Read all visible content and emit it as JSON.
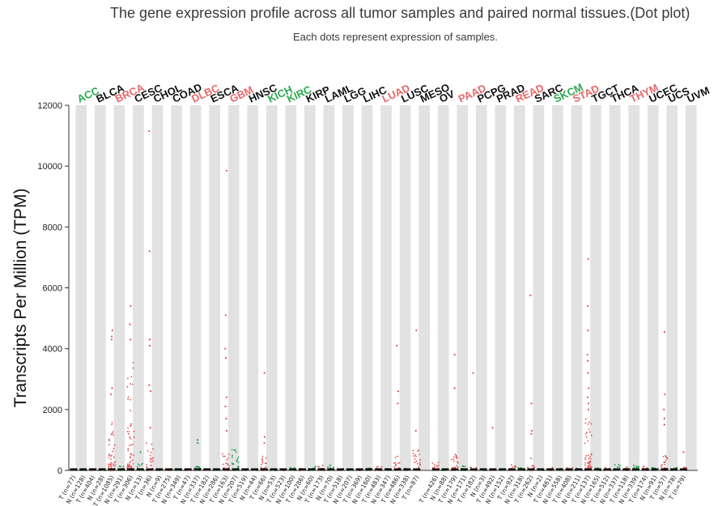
{
  "title": "The gene expression profile across all tumor samples and paired normal tissues.(Dot plot)",
  "subtitle": "Each dots represent expression of samples.",
  "colors": {
    "tumor": "#e3504f",
    "normal": "#1a9c3e",
    "up_label": "#e66868",
    "down_label": "#2aa84f",
    "plain_label": "#111111",
    "band": "#e2e2e2",
    "median": "#000000"
  },
  "chart_data": {
    "type": "scatter",
    "ylabel": "Transcripts Per Million (TPM)",
    "ylim": [
      0,
      12000
    ],
    "yticks": [
      0,
      2000,
      4000,
      6000,
      8000,
      10000,
      12000
    ],
    "cancers": [
      {
        "name": "ACC",
        "status": "down",
        "groups": [
          {
            "label": "T (n=77)",
            "type": "T",
            "max": 30,
            "outliers": []
          },
          {
            "label": "N (n=128)",
            "type": "N",
            "max": 40,
            "outliers": []
          }
        ]
      },
      {
        "name": "BLCA",
        "status": "none",
        "groups": [
          {
            "label": "T (n=404)",
            "type": "T",
            "max": 60,
            "outliers": []
          },
          {
            "label": "N (n=28)",
            "type": "N",
            "max": 40,
            "outliers": []
          }
        ]
      },
      {
        "name": "BRCA",
        "status": "up",
        "groups": [
          {
            "label": "T (n=1085)",
            "type": "T",
            "max": 1700,
            "outliers": [
              2500,
              2700,
              4300,
              4400,
              4600
            ]
          },
          {
            "label": "N (n=291)",
            "type": "N",
            "max": 150,
            "outliers": []
          }
        ]
      },
      {
        "name": "CESC",
        "status": "none",
        "groups": [
          {
            "label": "T (n=306)",
            "type": "T",
            "max": 3600,
            "outliers": [
              4300,
              4800,
              5400
            ]
          },
          {
            "label": "N (n=13)",
            "type": "N",
            "max": 250,
            "outliers": [
              600
            ]
          }
        ]
      },
      {
        "name": "CHOL",
        "status": "none",
        "groups": [
          {
            "label": "T (n=36)",
            "type": "T",
            "max": 900,
            "outliers": [
              1400,
              2600,
              2800,
              4100,
              4300,
              7200,
              11150
            ]
          },
          {
            "label": "N (n=9)",
            "type": "N",
            "max": 30,
            "outliers": []
          }
        ]
      },
      {
        "name": "COAD",
        "status": "none",
        "groups": [
          {
            "label": "T (n=275)",
            "type": "T",
            "max": 40,
            "outliers": []
          },
          {
            "label": "N (n=349)",
            "type": "N",
            "max": 100,
            "outliers": []
          }
        ]
      },
      {
        "name": "DLBC",
        "status": "up",
        "groups": [
          {
            "label": "T (n=47)",
            "type": "T",
            "max": 30,
            "outliers": []
          },
          {
            "label": "N (n=337)",
            "type": "N",
            "max": 200,
            "outliers": [
              900,
              1000
            ]
          }
        ]
      },
      {
        "name": "ESCA",
        "status": "none",
        "groups": [
          {
            "label": "T (n=182)",
            "type": "T",
            "max": 40,
            "outliers": []
          },
          {
            "label": "N (n=286)",
            "type": "N",
            "max": 60,
            "outliers": []
          }
        ]
      },
      {
        "name": "GBM",
        "status": "up",
        "groups": [
          {
            "label": "T (n=163)",
            "type": "T",
            "max": 600,
            "outliers": [
              1300,
              1700,
              2100,
              2400,
              3700,
              4000,
              5100,
              9850
            ]
          },
          {
            "label": "N (n=207)",
            "type": "N",
            "max": 700,
            "outliers": []
          }
        ]
      },
      {
        "name": "HNSC",
        "status": "none",
        "groups": [
          {
            "label": "T (n=519)",
            "type": "T",
            "max": 60,
            "outliers": []
          },
          {
            "label": "N (n=44)",
            "type": "N",
            "max": 40,
            "outliers": []
          }
        ]
      },
      {
        "name": "KICH",
        "status": "down",
        "groups": [
          {
            "label": "T (n=66)",
            "type": "T",
            "max": 500,
            "outliers": [
              900,
              1100,
              3200
            ]
          },
          {
            "label": "N (n=53)",
            "type": "N",
            "max": 40,
            "outliers": []
          }
        ]
      },
      {
        "name": "KIRC",
        "status": "down",
        "groups": [
          {
            "label": "T (n=523)",
            "type": "T",
            "max": 40,
            "outliers": []
          },
          {
            "label": "N (n=100)",
            "type": "N",
            "max": 100,
            "outliers": []
          }
        ]
      },
      {
        "name": "KIRP",
        "status": "none",
        "groups": [
          {
            "label": "T (n=286)",
            "type": "T",
            "max": 80,
            "outliers": []
          },
          {
            "label": "N (n=60)",
            "type": "N",
            "max": 150,
            "outliers": []
          }
        ]
      },
      {
        "name": "LAML",
        "status": "none",
        "groups": [
          {
            "label": "T (n=173)",
            "type": "T",
            "max": 200,
            "outliers": []
          },
          {
            "label": "N (n=70)",
            "type": "N",
            "max": 200,
            "outliers": []
          }
        ]
      },
      {
        "name": "LGG",
        "status": "none",
        "groups": [
          {
            "label": "T (n=518)",
            "type": "T",
            "max": 40,
            "outliers": []
          },
          {
            "label": "N (n=207)",
            "type": "N",
            "max": 40,
            "outliers": []
          }
        ]
      },
      {
        "name": "LIHC",
        "status": "none",
        "groups": [
          {
            "label": "T (n=369)",
            "type": "T",
            "max": 40,
            "outliers": []
          },
          {
            "label": "N (n=160)",
            "type": "N",
            "max": 80,
            "outliers": []
          }
        ]
      },
      {
        "name": "LUAD",
        "status": "up",
        "groups": [
          {
            "label": "T (n=483)",
            "type": "T",
            "max": 250,
            "outliers": []
          },
          {
            "label": "N (n=347)",
            "type": "N",
            "max": 60,
            "outliers": []
          }
        ]
      },
      {
        "name": "LUSC",
        "status": "none",
        "groups": [
          {
            "label": "T (n=486)",
            "type": "T",
            "max": 500,
            "outliers": [
              2200,
              2600,
              4100
            ]
          },
          {
            "label": "N (n=338)",
            "type": "N",
            "max": 60,
            "outliers": []
          }
        ]
      },
      {
        "name": "MESO",
        "status": "none",
        "groups": [
          {
            "label": "T (n=87)",
            "type": "T",
            "max": 800,
            "outliers": [
              1300,
              4600
            ]
          }
        ]
      },
      {
        "name": "OV",
        "status": "none",
        "groups": [
          {
            "label": "T (n=426)",
            "type": "T",
            "max": 300,
            "outliers": []
          },
          {
            "label": "N (n=88)",
            "type": "N",
            "max": 40,
            "outliers": []
          }
        ]
      },
      {
        "name": "PAAD",
        "status": "up",
        "groups": [
          {
            "label": "T (n=179)",
            "type": "T",
            "max": 800,
            "outliers": [
              2700,
              3800
            ]
          },
          {
            "label": "N (n=171)",
            "type": "N",
            "max": 150,
            "outliers": []
          }
        ]
      },
      {
        "name": "PCPG",
        "status": "none",
        "groups": [
          {
            "label": "T (n=182)",
            "type": "T",
            "max": 100,
            "outliers": [
              3200
            ]
          },
          {
            "label": "N (n=3)",
            "type": "N",
            "max": 40,
            "outliers": []
          }
        ]
      },
      {
        "name": "PRAD",
        "status": "none",
        "groups": [
          {
            "label": "T (n=492)",
            "type": "T",
            "max": 40,
            "outliers": [
              1400
            ]
          },
          {
            "label": "N (n=152)",
            "type": "N",
            "max": 40,
            "outliers": []
          }
        ]
      },
      {
        "name": "READ",
        "status": "up",
        "groups": [
          {
            "label": "T (n=92)",
            "type": "T",
            "max": 200,
            "outliers": []
          },
          {
            "label": "N (n=318)",
            "type": "N",
            "max": 100,
            "outliers": []
          }
        ]
      },
      {
        "name": "SARC",
        "status": "none",
        "groups": [
          {
            "label": "T (n=262)",
            "type": "T",
            "max": 400,
            "outliers": [
              1200,
              1300,
              2200,
              5750
            ]
          },
          {
            "label": "N (n=2)",
            "type": "N",
            "max": 40,
            "outliers": []
          }
        ]
      },
      {
        "name": "SKCM",
        "status": "down",
        "groups": [
          {
            "label": "T (n=461)",
            "type": "T",
            "max": 100,
            "outliers": []
          },
          {
            "label": "N (n=558)",
            "type": "N",
            "max": 80,
            "outliers": []
          }
        ]
      },
      {
        "name": "STAD",
        "status": "up",
        "groups": [
          {
            "label": "T (n=408)",
            "type": "T",
            "max": 100,
            "outliers": []
          },
          {
            "label": "N (n=211)",
            "type": "N",
            "max": 80,
            "outliers": []
          }
        ]
      },
      {
        "name": "TGCT",
        "status": "none",
        "groups": [
          {
            "label": "T (n=137)",
            "type": "T",
            "max": 1800,
            "outliers": [
              2000,
              2200,
              2400,
              2700,
              3200,
              3600,
              3800,
              4600,
              5400,
              6950
            ]
          },
          {
            "label": "N (n=165)",
            "type": "N",
            "max": 100,
            "outliers": []
          }
        ]
      },
      {
        "name": "THCA",
        "status": "none",
        "groups": [
          {
            "label": "T (n=512)",
            "type": "T",
            "max": 100,
            "outliers": []
          },
          {
            "label": "N (n=337)",
            "type": "N",
            "max": 200,
            "outliers": []
          }
        ]
      },
      {
        "name": "THYM",
        "status": "up",
        "groups": [
          {
            "label": "T (n=118)",
            "type": "T",
            "max": 150,
            "outliers": []
          },
          {
            "label": "N (n=339)",
            "type": "N",
            "max": 200,
            "outliers": []
          }
        ]
      },
      {
        "name": "UCEC",
        "status": "none",
        "groups": [
          {
            "label": "T (n=174)",
            "type": "T",
            "max": 200,
            "outliers": []
          },
          {
            "label": "N (n=91)",
            "type": "N",
            "max": 100,
            "outliers": []
          }
        ]
      },
      {
        "name": "UCS",
        "status": "none",
        "groups": [
          {
            "label": "T (n=57)",
            "type": "T",
            "max": 700,
            "outliers": [
              1500,
              1700,
              2000,
              2500,
              4550
            ]
          },
          {
            "label": "N (n=78)",
            "type": "N",
            "max": 100,
            "outliers": []
          }
        ]
      },
      {
        "name": "UVM",
        "status": "none",
        "groups": [
          {
            "label": "T (n=79)",
            "type": "T",
            "max": 100,
            "outliers": [
              600
            ]
          }
        ]
      }
    ]
  }
}
